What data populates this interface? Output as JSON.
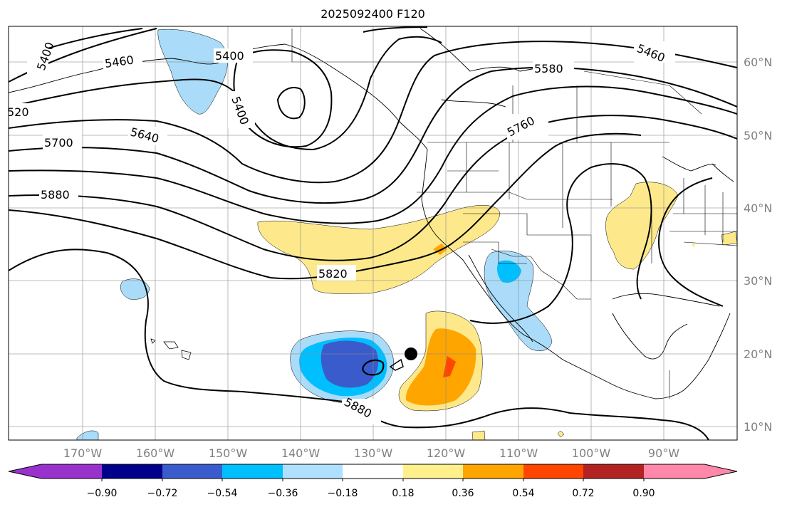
{
  "title": "2025092400 F120",
  "lat_labels": [
    "60°N",
    "50°N",
    "40°N",
    "30°N",
    "20°N",
    "10°N"
  ],
  "lon_labels": [
    "170°W",
    "160°W",
    "150°W",
    "140°W",
    "130°W",
    "120°W",
    "110°W",
    "100°W",
    "90°W"
  ],
  "contour_labels": [
    "5400",
    "5460",
    "5400",
    "5400",
    "520",
    "5640",
    "5700",
    "5880",
    "5580",
    "5460",
    "5760",
    "5820",
    "5880"
  ],
  "colorbar": {
    "tick_labels": [
      "−0.90",
      "−0.72",
      "−0.54",
      "−0.36",
      "−0.18",
      "0.18",
      "0.36",
      "0.54",
      "0.72",
      "0.90"
    ],
    "colors": [
      "#9932cc",
      "#00008b",
      "#3a5bcc",
      "#00bfff",
      "#b0e0ff",
      "#ffffff",
      "#fff08c",
      "#ffa500",
      "#ff4500",
      "#b22222",
      "#ff88aa"
    ]
  },
  "colors": {
    "yellow": "#fde98c",
    "orange": "#ffa500",
    "red_orange": "#ff4500",
    "light_blue": "#aadcf9",
    "cyan": "#00bfff",
    "royal_blue": "#3a5bcc"
  }
}
